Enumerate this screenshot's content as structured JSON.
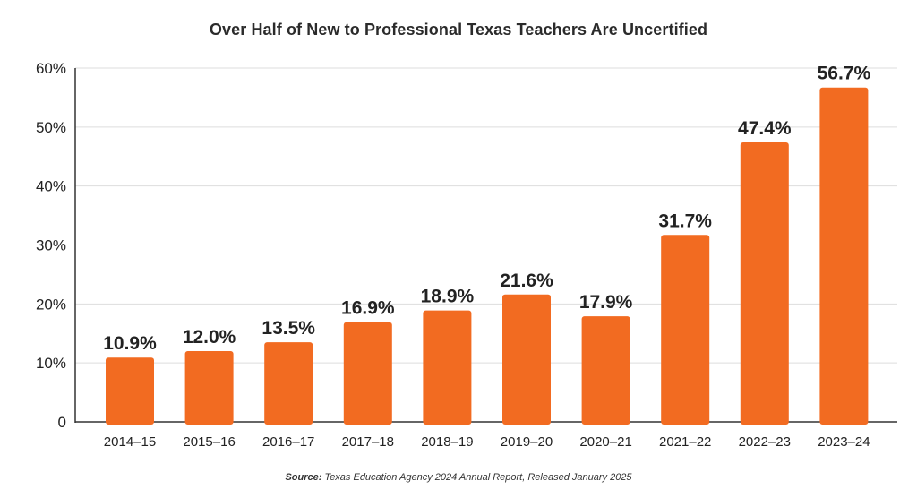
{
  "chart_data": {
    "type": "bar",
    "title": "Over Half of New to Professional Texas Teachers Are Uncertified",
    "categories": [
      "2014–15",
      "2015–16",
      "2016–17",
      "2017–18",
      "2018–19",
      "2019–20",
      "2020–21",
      "2021–22",
      "2022–23",
      "2023–24"
    ],
    "values": [
      10.9,
      12.0,
      13.5,
      16.9,
      18.9,
      21.6,
      17.9,
      31.7,
      47.4,
      56.7
    ],
    "data_labels": [
      "10.9%",
      "12.0%",
      "13.5%",
      "16.9%",
      "18.9%",
      "21.6%",
      "17.9%",
      "31.7%",
      "47.4%",
      "56.7%"
    ],
    "ylim": [
      0,
      60
    ],
    "yticks": [
      0,
      10,
      20,
      30,
      40,
      50,
      60
    ],
    "ytick_labels": [
      "0",
      "10%",
      "20%",
      "30%",
      "40%",
      "50%",
      "60%"
    ],
    "xlabel": "",
    "ylabel": "",
    "grid": true,
    "legend": "none",
    "bar_color": "#f26b21",
    "grid_color": "#dddddd",
    "axis_color": "#333333"
  },
  "source": {
    "label": "Source:",
    "text": " Texas Education Agency 2024 Annual Report, Released January 2025"
  }
}
